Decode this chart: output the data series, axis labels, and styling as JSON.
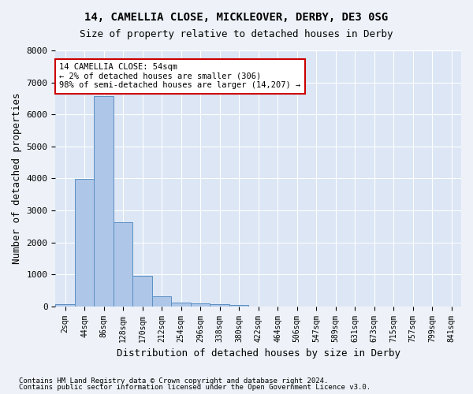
{
  "title1": "14, CAMELLIA CLOSE, MICKLEOVER, DERBY, DE3 0SG",
  "title2": "Size of property relative to detached houses in Derby",
  "xlabel": "Distribution of detached houses by size in Derby",
  "ylabel": "Number of detached properties",
  "footnote1": "Contains HM Land Registry data © Crown copyright and database right 2024.",
  "footnote2": "Contains public sector information licensed under the Open Government Licence v3.0.",
  "annotation_line1": "14 CAMELLIA CLOSE: 54sqm",
  "annotation_line2": "← 2% of detached houses are smaller (306)",
  "annotation_line3": "98% of semi-detached houses are larger (14,207) →",
  "bar_values": [
    75,
    3980,
    6560,
    2620,
    960,
    310,
    120,
    95,
    65,
    50,
    0,
    0,
    0,
    0,
    0,
    0,
    0,
    0,
    0,
    0,
    0
  ],
  "bar_labels": [
    "2sqm",
    "44sqm",
    "86sqm",
    "128sqm",
    "170sqm",
    "212sqm",
    "254sqm",
    "296sqm",
    "338sqm",
    "380sqm",
    "422sqm",
    "464sqm",
    "506sqm",
    "547sqm",
    "589sqm",
    "631sqm",
    "673sqm",
    "715sqm",
    "757sqm",
    "799sqm",
    "841sqm"
  ],
  "bar_color": "#aec6e8",
  "bar_edge_color": "#5a8fc2",
  "background_color": "#eef2f8",
  "plot_bg_color": "#dce6f5",
  "grid_color": "#ffffff",
  "annotation_box_color": "#ffffff",
  "annotation_box_edge": "#cc0000",
  "ylim": [
    0,
    8000
  ],
  "yticks": [
    0,
    1000,
    2000,
    3000,
    4000,
    5000,
    6000,
    7000,
    8000
  ],
  "figsize": [
    6.0,
    5.0
  ],
  "dpi": 100
}
